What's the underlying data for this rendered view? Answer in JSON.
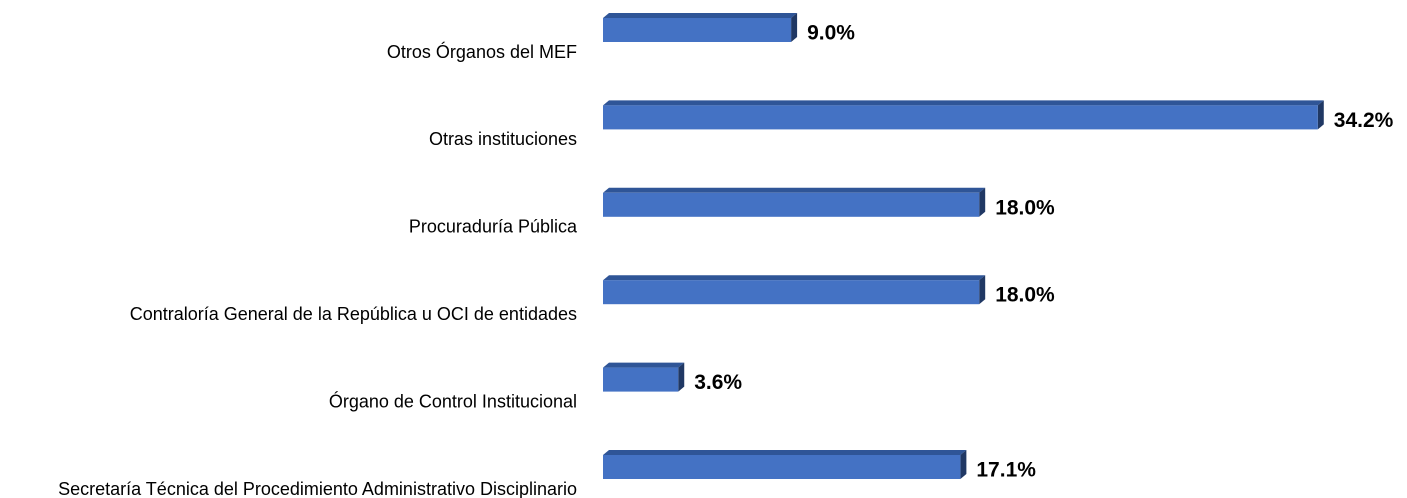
{
  "chart_data": {
    "type": "bar",
    "orientation": "horizontal",
    "categories": [
      "Otros Órganos del MEF",
      "Otras instituciones",
      "Procuraduría Pública",
      "Contraloría General de la República u OCI de entidades",
      "Órgano de Control Institucional",
      "Secretaría Técnica del Procedimiento Administrativo Disciplinario"
    ],
    "values": [
      9.0,
      34.2,
      18.0,
      18.0,
      3.6,
      17.1
    ],
    "value_labels": [
      "9.0%",
      "34.2%",
      "18.0%",
      "18.0%",
      "3.6%",
      "17.1%"
    ],
    "color": "#4472c4"
  }
}
